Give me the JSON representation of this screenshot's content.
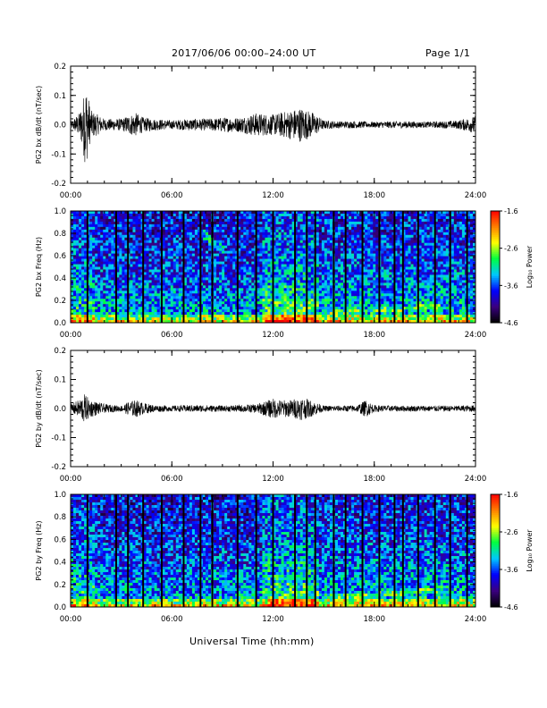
{
  "header": {
    "title": "2017/06/06  00:00–24:00 UT",
    "page": "Page 1/1"
  },
  "footer": {
    "xlabel": "Universal Time (hh:mm)"
  },
  "colors": {
    "trace": "#000000",
    "colormap": [
      "#000000",
      "#3a0080",
      "#0000ff",
      "#00c8ff",
      "#00ff40",
      "#ffff00",
      "#ff8000",
      "#ff0000"
    ]
  },
  "chart_data": [
    {
      "id": "bx-timeseries",
      "type": "line",
      "title": "",
      "xlabel": "",
      "ylabel": "PG2 bx dB/dt (nT/sec)",
      "xlim": [
        0,
        24
      ],
      "ylim": [
        -0.2,
        0.2
      ],
      "x_ticks": [
        "00:00",
        "06:00",
        "12:00",
        "18:00",
        "24:00"
      ],
      "y_ticks": [
        "0.2",
        "0.1",
        "0.0",
        "-0.1",
        "-0.2"
      ],
      "x": [
        0,
        0.5,
        0.7,
        0.9,
        1.2,
        2,
        3,
        3.5,
        3.9,
        4.3,
        5,
        6,
        7,
        8,
        9,
        10,
        11,
        12,
        13,
        13.7,
        14,
        14.3,
        15,
        16,
        17,
        18,
        19,
        20,
        21,
        22,
        23,
        24
      ],
      "amplitude": [
        0.01,
        0.04,
        0.08,
        0.15,
        0.05,
        0.02,
        0.02,
        0.035,
        0.04,
        0.025,
        0.02,
        0.015,
        0.02,
        0.02,
        0.025,
        0.025,
        0.04,
        0.035,
        0.05,
        0.06,
        0.05,
        0.045,
        0.015,
        0.012,
        0.012,
        0.01,
        0.012,
        0.012,
        0.01,
        0.012,
        0.015,
        0.03
      ]
    },
    {
      "id": "bx-spectrogram",
      "type": "heatmap",
      "title": "",
      "xlabel": "",
      "ylabel": "PG2 bx Freq (Hz)",
      "xlim": [
        0,
        24
      ],
      "ylim": [
        0.0,
        1.0
      ],
      "x_ticks": [
        "00:00",
        "06:00",
        "12:00",
        "18:00",
        "24:00"
      ],
      "y_ticks": [
        "1.0",
        "0.8",
        "0.6",
        "0.4",
        "0.2",
        "0.0"
      ],
      "colorbar": {
        "label": "Log₁₀ Power",
        "range": [
          -4.6,
          -1.6
        ],
        "ticks": [
          "-1.6",
          "-2.6",
          "-3.6",
          "-4.6"
        ]
      },
      "gap_lines_hours": [
        1.0,
        2.7,
        3.4,
        4.3,
        5.4,
        6.7,
        7.7,
        8.4,
        9.9,
        11.0,
        12.0,
        13.3,
        14.0,
        14.5,
        15.6,
        16.3,
        17.3,
        18.3,
        19.2,
        19.7,
        20.6,
        21.6,
        22.5,
        23.5
      ]
    },
    {
      "id": "by-timeseries",
      "type": "line",
      "title": "",
      "xlabel": "",
      "ylabel": "PG2 by dB/dt (nT/sec)",
      "xlim": [
        0,
        24
      ],
      "ylim": [
        -0.2,
        0.2
      ],
      "x_ticks": [
        "00:00",
        "06:00",
        "12:00",
        "18:00",
        "24:00"
      ],
      "y_ticks": [
        "0.2",
        "0.1",
        "0.0",
        "-0.1",
        "-0.2"
      ],
      "x": [
        0,
        0.5,
        0.8,
        1.2,
        2,
        3,
        3.5,
        3.9,
        4.3,
        5,
        6,
        7,
        8,
        9,
        10,
        11,
        11.5,
        12,
        12.5,
        13,
        13.7,
        14.2,
        15,
        16,
        17,
        17.5,
        18,
        19,
        20,
        21,
        22,
        23,
        24
      ],
      "amplitude": [
        0.015,
        0.03,
        0.05,
        0.03,
        0.015,
        0.01,
        0.025,
        0.03,
        0.02,
        0.012,
        0.01,
        0.012,
        0.012,
        0.01,
        0.012,
        0.015,
        0.025,
        0.035,
        0.03,
        0.03,
        0.04,
        0.03,
        0.01,
        0.01,
        0.012,
        0.03,
        0.012,
        0.01,
        0.01,
        0.01,
        0.01,
        0.01,
        0.012
      ]
    },
    {
      "id": "by-spectrogram",
      "type": "heatmap",
      "title": "",
      "xlabel": "",
      "ylabel": "PG2 by Freq (Hz)",
      "xlim": [
        0,
        24
      ],
      "ylim": [
        0.0,
        1.0
      ],
      "x_ticks": [
        "00:00",
        "06:00",
        "12:00",
        "18:00",
        "24:00"
      ],
      "y_ticks": [
        "1.0",
        "0.8",
        "0.6",
        "0.4",
        "0.2",
        "0.0"
      ],
      "colorbar": {
        "label": "Log₁₀ Power",
        "range": [
          -4.6,
          -1.6
        ],
        "ticks": [
          "-1.6",
          "-2.6",
          "-3.6",
          "-4.6"
        ]
      },
      "gap_lines_hours": [
        1.0,
        2.7,
        3.4,
        4.3,
        5.4,
        6.7,
        7.7,
        8.4,
        9.9,
        11.0,
        12.0,
        13.3,
        14.0,
        14.5,
        15.6,
        16.3,
        17.3,
        18.3,
        19.2,
        19.7,
        20.6,
        21.6,
        22.5,
        23.5
      ]
    }
  ]
}
